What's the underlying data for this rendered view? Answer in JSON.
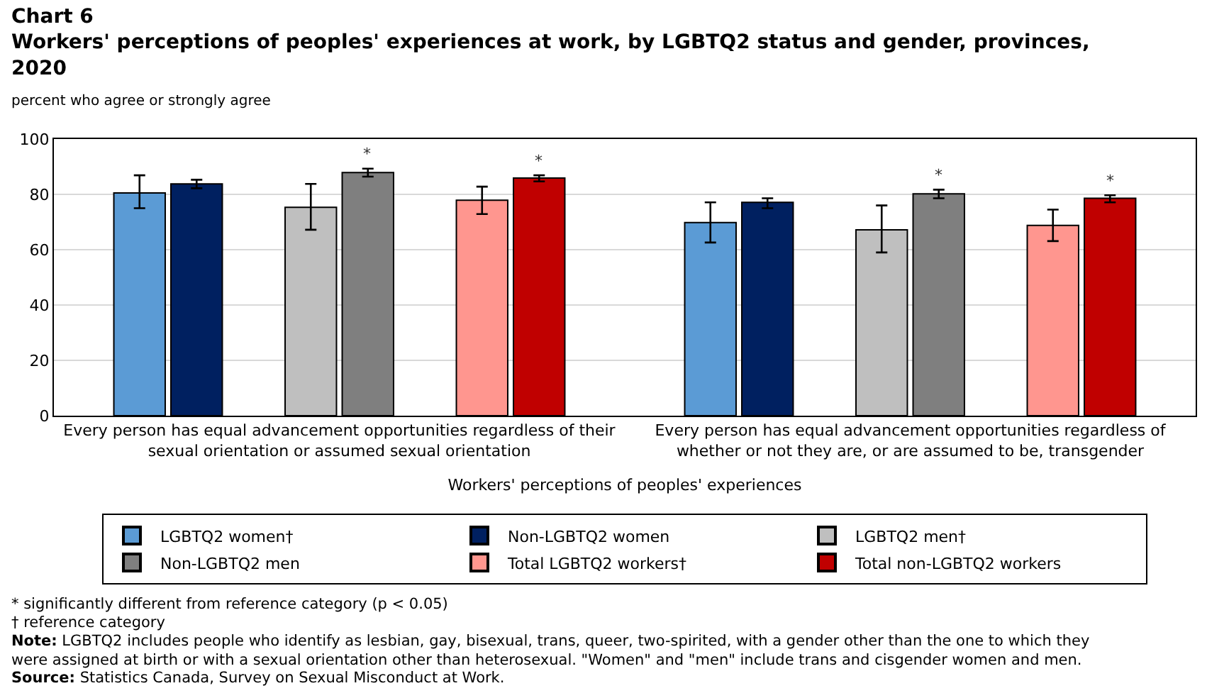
{
  "chart_data": {
    "type": "bar",
    "title": "Chart 6\nWorkers' perceptions of peoples' experiences at work, by LGBTQ2 status and gender, provinces,\n2020",
    "subtitle": "percent who agree or strongly agree",
    "xlabel": "Workers' perceptions of peoples' experiences",
    "categories": [
      "Every person has equal advancement opportunities regardless of their sexual orientation or assumed sexual orientation",
      "Every person has equal advancement opportunities regardless of whether or not they are, or are assumed to be, transgender"
    ],
    "series": [
      {
        "name": "LGBTQ2 women†",
        "color": "#5b9bd5",
        "values": [
          80.5,
          69.8
        ],
        "errors": [
          [
            75.0,
            86.9
          ],
          [
            62.6,
            77.1
          ]
        ]
      },
      {
        "name": "Non-LGBTQ2 women",
        "color": "#002060",
        "values": [
          83.8,
          77.1
        ],
        "errors": [
          [
            82.2,
            85.3
          ],
          [
            75.0,
            78.6
          ]
        ]
      },
      {
        "name": "LGBTQ2 men†",
        "color": "#bfbfbf",
        "values": [
          75.3,
          67.2
        ],
        "errors": [
          [
            67.2,
            83.8
          ],
          [
            59.0,
            76.0
          ]
        ]
      },
      {
        "name": "Non-LGBTQ2 men",
        "color": "#7f7f7f",
        "values": [
          87.9,
          80.2
        ],
        "errors": [
          [
            86.4,
            89.3
          ],
          [
            78.6,
            81.7
          ]
        ],
        "value_labels": [
          "*",
          "*"
        ]
      },
      {
        "name": "Total LGBTQ2 workers†",
        "color": "#ff968f",
        "values": [
          77.9,
          68.8
        ],
        "errors": [
          [
            72.9,
            82.8
          ],
          [
            63.1,
            74.5
          ]
        ]
      },
      {
        "name": "Total non-LGBTQ2 workers",
        "color": "#c00000",
        "values": [
          85.9,
          78.6
        ],
        "errors": [
          [
            84.7,
            86.9
          ],
          [
            77.1,
            79.7
          ]
        ],
        "value_labels": [
          "*",
          "*"
        ]
      }
    ],
    "ylim": [
      0,
      100
    ],
    "yticks": [
      0,
      20,
      40,
      60,
      80,
      100
    ],
    "grid": "y",
    "legend": "bottom",
    "annotations": [
      "* significantly different from reference category (p < 0.05)",
      "† reference category",
      "Note: LGBTQ2 includes people who identify as lesbian, gay, bisexual, trans, queer, two-spirited, with a gender other than the one to which they were assigned at birth or with a sexual orientation other than heterosexual. \"Women\" and \"men\" include trans and cisgender women and men.",
      "Source: Statistics Canada, Survey on Sexual Misconduct at Work."
    ]
  }
}
